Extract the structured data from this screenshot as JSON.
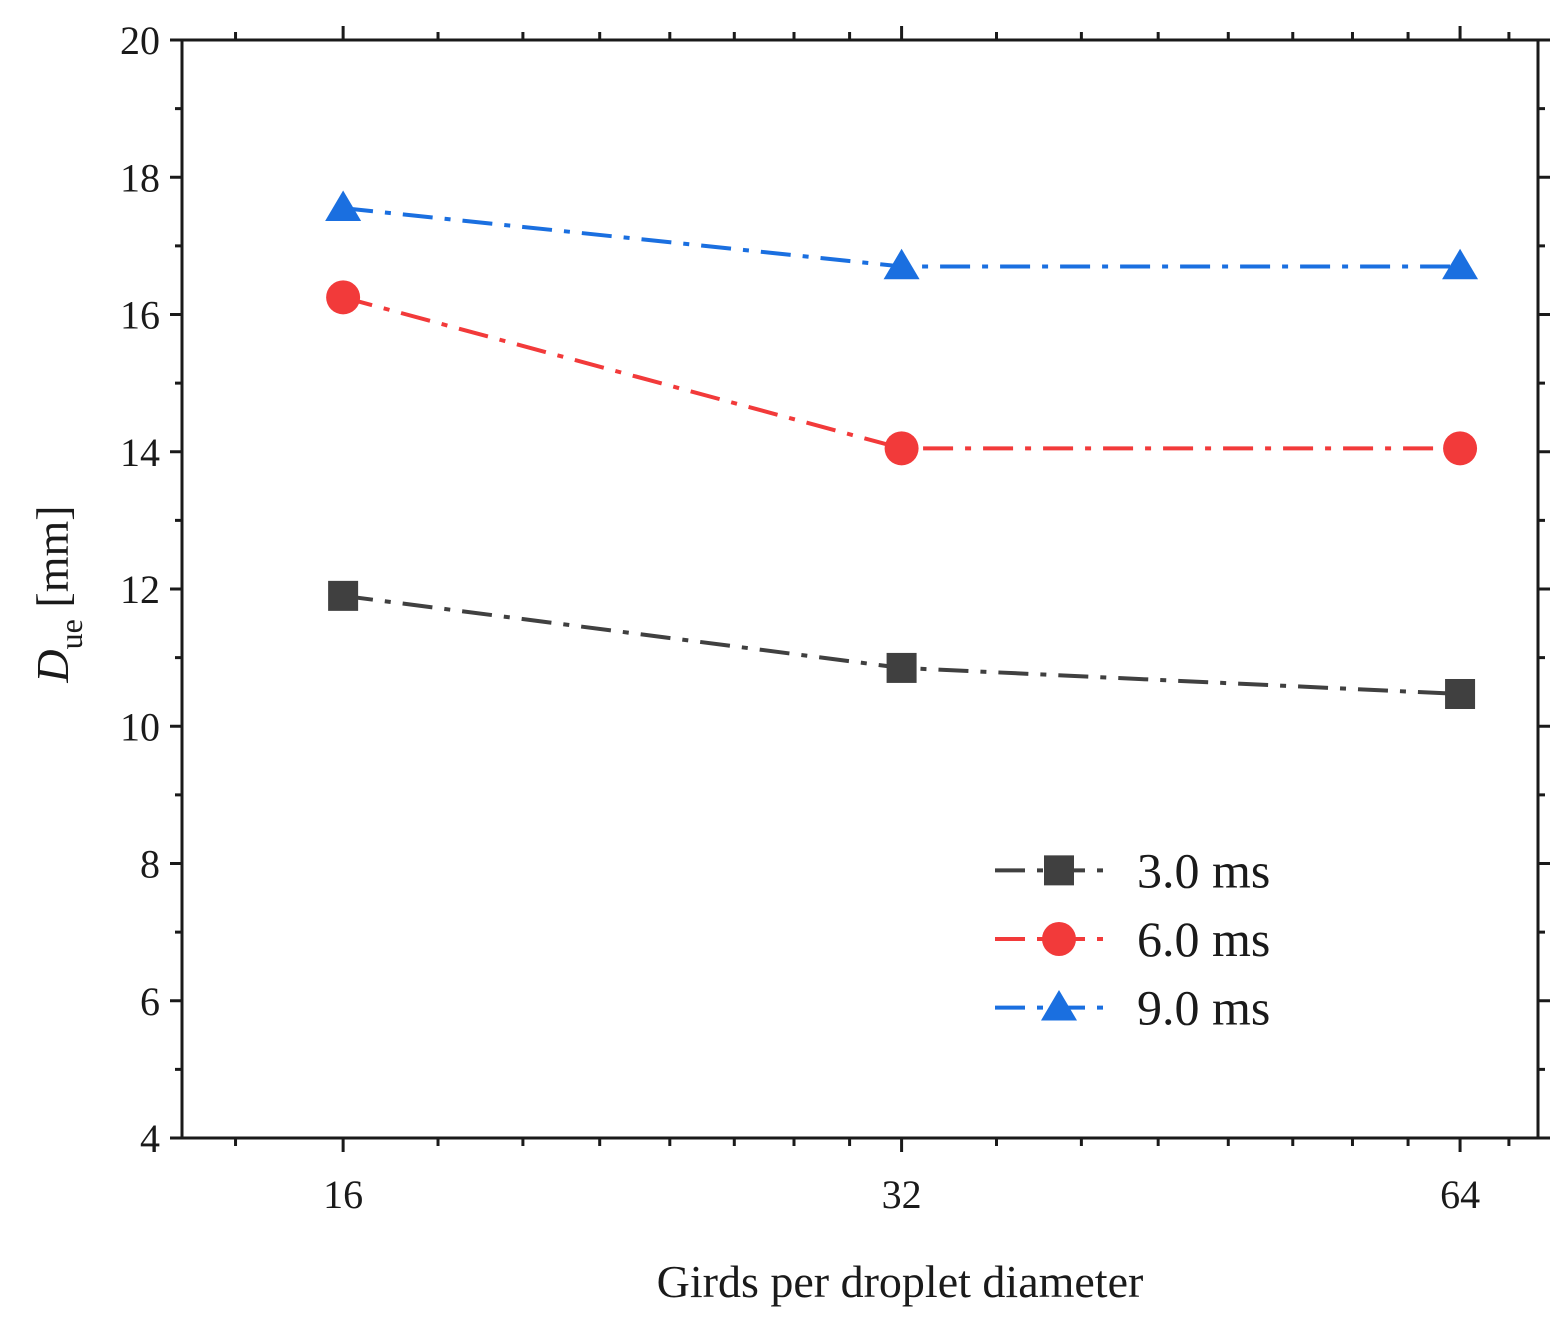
{
  "chart_data": {
    "type": "line",
    "title": "",
    "xlabel": "Girds per droplet diameter",
    "ylabel": {
      "main": "D",
      "subscript": "ue",
      "unit": " [mm]"
    },
    "x": [
      16,
      32,
      64
    ],
    "x_tick_labels": [
      "16",
      "32",
      "64"
    ],
    "x_scale": "log2",
    "xlim": [
      13.1,
      70.5
    ],
    "ylim": [
      4,
      20
    ],
    "y_ticks": [
      4,
      6,
      8,
      10,
      12,
      14,
      16,
      18,
      20
    ],
    "y_tick_labels": [
      "4",
      "6",
      "8",
      "10",
      "12",
      "14",
      "16",
      "18",
      "20"
    ],
    "grid": false,
    "legend_position": "lower-right",
    "series": [
      {
        "name": "3.0 ms",
        "marker": "square",
        "color": "#404040",
        "values": [
          11.9,
          10.85,
          10.47
        ]
      },
      {
        "name": "6.0 ms",
        "marker": "circle",
        "color": "#f23a3a",
        "values": [
          16.25,
          14.05,
          14.05
        ]
      },
      {
        "name": "9.0 ms",
        "marker": "triangle",
        "color": "#1a6fe0",
        "values": [
          17.55,
          16.7,
          16.7
        ]
      }
    ]
  }
}
